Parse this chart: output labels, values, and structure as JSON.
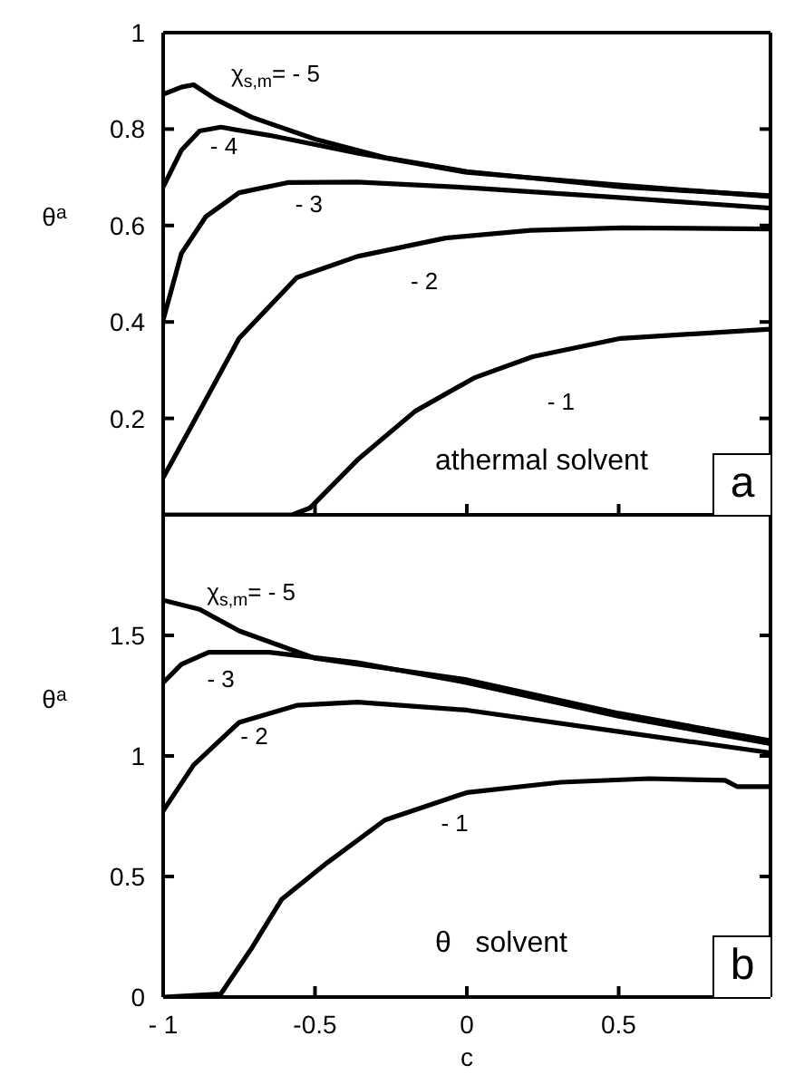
{
  "chart_data": [
    {
      "type": "line",
      "ylabel": "θ$^{a}$",
      "tick_labels": "y",
      "xlim": [
        -1,
        1
      ],
      "xticks": [
        {
          "value": -1,
          "label": null
        },
        {
          "value": -0.5,
          "label": null
        },
        {
          "value": 0,
          "label": null
        },
        {
          "value": 0.5,
          "label": null
        },
        {
          "value": 1,
          "label": null
        }
      ],
      "ylim": [
        0,
        1
      ],
      "yticks": [
        {
          "value": 0,
          "label": null
        },
        0.2,
        0.4,
        0.6,
        0.8,
        1
      ],
      "series": [
        {
          "name": "χ$_{s,m}$= - 5",
          "color": "#000000",
          "x": [
            -1,
            -0.94,
            -0.9,
            -0.83,
            -0.71,
            -0.5,
            -0.27,
            0,
            0.51,
            1
          ],
          "values": [
            0.872,
            0.887,
            0.892,
            0.863,
            0.825,
            0.779,
            0.741,
            0.712,
            0.68,
            0.662
          ]
        },
        {
          "name": "- 4",
          "color": "#000000",
          "x": [
            -1,
            -0.94,
            -0.88,
            -0.81,
            -0.65,
            -0.36,
            0,
            0.5,
            1
          ],
          "values": [
            0.68,
            0.756,
            0.796,
            0.804,
            0.787,
            0.75,
            0.71,
            0.684,
            0.66
          ]
        },
        {
          "name": "- 3",
          "color": "#000000",
          "x": [
            -1,
            -0.94,
            -0.86,
            -0.75,
            -0.59,
            -0.36,
            0.02,
            0.5,
            1
          ],
          "values": [
            0.404,
            0.542,
            0.618,
            0.668,
            0.689,
            0.69,
            0.678,
            0.658,
            0.636
          ]
        },
        {
          "name": "- 2",
          "color": "#000000",
          "x": [
            -1,
            -0.88,
            -0.75,
            -0.56,
            -0.36,
            -0.07,
            0.21,
            0.51,
            1
          ],
          "values": [
            0.077,
            0.215,
            0.366,
            0.492,
            0.536,
            0.574,
            0.59,
            0.595,
            0.593
          ]
        },
        {
          "name": "- 1",
          "color": "#000000",
          "x": [
            -1,
            -0.575,
            -0.517,
            -0.36,
            -0.17,
            0.024,
            0.217,
            0.507,
            1
          ],
          "values": [
            0,
            0,
            0.014,
            0.114,
            0.215,
            0.284,
            0.328,
            0.366,
            0.385
          ]
        }
      ],
      "annotations": [
        "athermal solvent",
        "a"
      ]
    },
    {
      "type": "line",
      "xlabel": "c",
      "ylabel": "θ$^{a}$",
      "xlim": [
        -1,
        1
      ],
      "xticks": [
        {
          "value": -1,
          "label": "- 1"
        },
        -0.5,
        0,
        0.5,
        {
          "value": 1,
          "label": null
        }
      ],
      "ylim": [
        0,
        2
      ],
      "yticks": [
        0,
        0.5,
        1,
        1.5,
        {
          "value": 2,
          "label": null
        }
      ],
      "series": [
        {
          "name": "χ$_{s,m}$= - 5",
          "color": "#000000",
          "x": [
            -1,
            -0.88,
            -0.75,
            -0.5,
            0,
            0.5,
            1
          ],
          "values": [
            1.646,
            1.608,
            1.519,
            1.405,
            1.316,
            1.177,
            1.063
          ]
        },
        {
          "name": "- 3",
          "color": "#000000",
          "x": [
            -1,
            -0.94,
            -0.85,
            -0.65,
            -0.36,
            0,
            0.5,
            1
          ],
          "values": [
            1.304,
            1.38,
            1.43,
            1.43,
            1.387,
            1.304,
            1.165,
            1.051
          ]
        },
        {
          "name": "- 2",
          "color": "#000000",
          "x": [
            -1,
            -0.9,
            -0.75,
            -0.56,
            -0.36,
            0,
            0.5,
            1
          ],
          "values": [
            0.772,
            0.962,
            1.139,
            1.21,
            1.223,
            1.19,
            1.101,
            1.013
          ]
        },
        {
          "name": "- 1",
          "color": "#000000",
          "x": [
            -1,
            -0.81,
            -0.71,
            -0.61,
            -0.46,
            -0.27,
            0,
            0.31,
            0.6,
            0.85,
            0.89,
            1
          ],
          "values": [
            0,
            0.013,
            0.2,
            0.405,
            0.557,
            0.734,
            0.848,
            0.891,
            0.906,
            0.899,
            0.873,
            0.873
          ]
        }
      ],
      "annotations": [
        "θ   solvent",
        "b"
      ]
    }
  ]
}
